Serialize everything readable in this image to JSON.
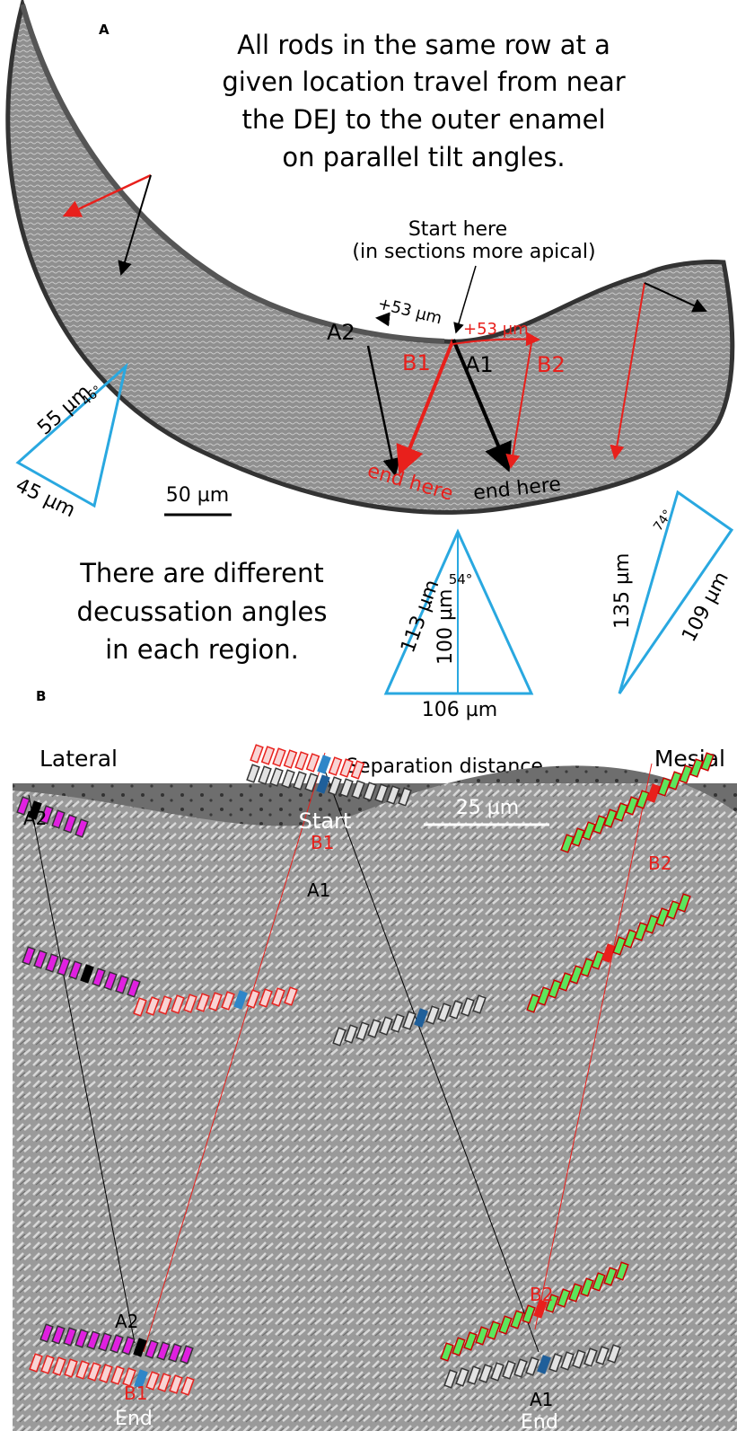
{
  "panel_a": {
    "label": "A",
    "caption": [
      "All rods in the same row at a",
      "given location travel from near",
      "the DEJ to the outer enamel",
      "on parallel tilt angles."
    ],
    "start_note": [
      "Start here",
      "(in sections more apical)"
    ],
    "offset_left": "+53 µm",
    "offset_right": "+53 µm",
    "rod_labels": [
      "A2",
      "B1",
      "A1",
      "B2"
    ],
    "end_red": "end here",
    "end_black": "end here",
    "scale_bar": "50 µm",
    "triangles": [
      {
        "sides": [
          "55 µm",
          "45 µm"
        ],
        "angle": "46°"
      },
      {
        "sides": [
          "113 µm",
          "106 µm"
        ],
        "height": "100 µm",
        "angle": "54°"
      },
      {
        "sides": [
          "135 µm",
          "109 µm"
        ],
        "angle": "74°"
      }
    ],
    "note": [
      "There are different",
      "decussation angles",
      "in each region."
    ]
  },
  "panel_b": {
    "label": "B",
    "lateral": "Lateral",
    "title": "Separation distance",
    "mesial": "Mesial",
    "start": "Start",
    "scale_bar": "25 µm",
    "top_labels": [
      "A2",
      "B1",
      "A1",
      "B2"
    ],
    "bottom_labels": [
      "A2",
      "B1",
      "End",
      "B2",
      "A1",
      "End"
    ]
  }
}
